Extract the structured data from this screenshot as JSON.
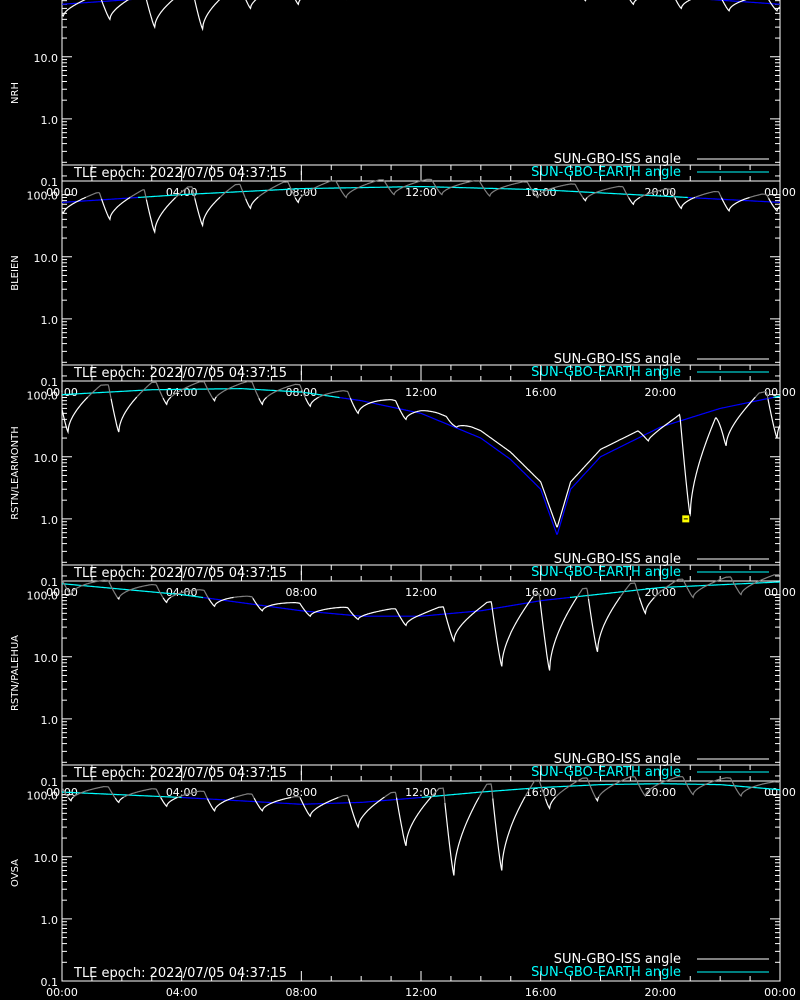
{
  "figure": {
    "x_ticks": [
      "00:00",
      "04:00",
      "08:00",
      "12:00",
      "16:00",
      "20:00",
      "00:00"
    ],
    "y_ticks": [
      "100.0",
      "10.0",
      "1.0",
      "0.1"
    ],
    "epoch_label": "TLE epoch: 2022/07/05 04:37:15",
    "legend": {
      "iss_label": "SUN-GBO-ISS angle",
      "earth_label": "SUN-GBO-EARTH angle",
      "iss_color": "#ffffff",
      "earth_color": "#00ffff"
    },
    "colors": {
      "background": "#000000",
      "axes": "#ffffff",
      "earth_below": "#0000ff",
      "earth_above": "#00ffff",
      "iss_below": "#ffffff",
      "iss_above": "#808080",
      "marker": "#ffff00"
    }
  },
  "chart_data": [
    {
      "type": "line",
      "ylabel": "NRH",
      "y_scale": "log",
      "xlim": [
        0,
        24
      ],
      "ylim": [
        0.1,
        300
      ],
      "earth": {
        "x": [
          0,
          4,
          8,
          12,
          16,
          20,
          24
        ],
        "y": [
          70,
          95,
          120,
          135,
          120,
          95,
          70
        ]
      },
      "iss_dips": [
        {
          "t": 0.05,
          "min": 45
        },
        {
          "t": 1.6,
          "min": 40
        },
        {
          "t": 3.1,
          "min": 30
        },
        {
          "t": 4.7,
          "min": 28
        },
        {
          "t": 6.3,
          "min": 60
        },
        {
          "t": 7.9,
          "min": 70
        },
        {
          "t": 9.5,
          "min": 85
        },
        {
          "t": 11.1,
          "min": 95
        },
        {
          "t": 12.7,
          "min": 100
        },
        {
          "t": 14.3,
          "min": 95
        },
        {
          "t": 15.9,
          "min": 90
        },
        {
          "t": 17.5,
          "min": 80
        },
        {
          "t": 19.1,
          "min": 70
        },
        {
          "t": 20.7,
          "min": 60
        },
        {
          "t": 22.3,
          "min": 55
        },
        {
          "t": 23.9,
          "min": 55
        }
      ]
    },
    {
      "type": "line",
      "ylabel": "BLEIEN",
      "y_scale": "log",
      "xlim": [
        0,
        24
      ],
      "ylim": [
        0.1,
        300
      ],
      "earth": {
        "x": [
          0,
          4,
          8,
          12,
          16,
          20,
          24
        ],
        "y": [
          75,
          100,
          125,
          135,
          120,
          95,
          75
        ]
      },
      "iss_dips": [
        {
          "t": 0.05,
          "min": 50
        },
        {
          "t": 1.6,
          "min": 40
        },
        {
          "t": 3.1,
          "min": 25
        },
        {
          "t": 4.7,
          "min": 32
        },
        {
          "t": 6.3,
          "min": 60
        },
        {
          "t": 7.9,
          "min": 75
        },
        {
          "t": 9.5,
          "min": 90
        },
        {
          "t": 11.1,
          "min": 100
        },
        {
          "t": 12.7,
          "min": 100
        },
        {
          "t": 14.3,
          "min": 95
        },
        {
          "t": 15.9,
          "min": 90
        },
        {
          "t": 17.5,
          "min": 80
        },
        {
          "t": 19.1,
          "min": 70
        },
        {
          "t": 20.7,
          "min": 60
        },
        {
          "t": 22.3,
          "min": 55
        },
        {
          "t": 23.9,
          "min": 55
        }
      ]
    },
    {
      "type": "line",
      "ylabel": "RSTN/LEARMONTH",
      "y_scale": "log",
      "xlim": [
        0,
        24
      ],
      "ylim": [
        0.1,
        300
      ],
      "earth": {
        "x": [
          0,
          3,
          6,
          8,
          10,
          12,
          14,
          15,
          16,
          16.55,
          17,
          18,
          20,
          22,
          24
        ],
        "y": [
          100,
          120,
          125,
          110,
          80,
          50,
          20,
          9,
          3,
          0.55,
          3,
          10,
          30,
          60,
          95
        ]
      },
      "iss_dips": [
        {
          "t": 0.2,
          "min": 25
        },
        {
          "t": 1.9,
          "min": 25
        },
        {
          "t": 3.5,
          "min": 70
        },
        {
          "t": 5.1,
          "min": 80
        },
        {
          "t": 6.7,
          "min": 70
        },
        {
          "t": 8.3,
          "min": 65
        },
        {
          "t": 9.9,
          "min": 50
        },
        {
          "t": 11.5,
          "min": 40
        },
        {
          "t": 13.2,
          "min": 30
        },
        {
          "t": 14.8,
          "min": 30
        },
        {
          "t": 16.4,
          "min": 25
        },
        {
          "t": 18.0,
          "min": 25
        },
        {
          "t": 19.6,
          "min": 18
        },
        {
          "t": 21.0,
          "min": 1.1
        },
        {
          "t": 22.2,
          "min": 15
        },
        {
          "t": 23.9,
          "min": 20
        }
      ],
      "marker": {
        "t": 20.85,
        "y": 1.0
      }
    },
    {
      "type": "line",
      "ylabel": "RSTN/PALEHUA",
      "y_scale": "log",
      "xlim": [
        0,
        24
      ],
      "ylim": [
        0.1,
        300
      ],
      "earth": {
        "x": [
          0,
          4,
          8,
          10,
          12,
          14,
          16,
          20,
          24
        ],
        "y": [
          150,
          100,
          55,
          45,
          45,
          55,
          80,
          130,
          160
        ]
      },
      "iss_dips": [
        {
          "t": 0.3,
          "min": 100
        },
        {
          "t": 1.9,
          "min": 85
        },
        {
          "t": 3.5,
          "min": 75
        },
        {
          "t": 5.1,
          "min": 65
        },
        {
          "t": 6.7,
          "min": 55
        },
        {
          "t": 8.3,
          "min": 45
        },
        {
          "t": 9.9,
          "min": 40
        },
        {
          "t": 11.5,
          "min": 32
        },
        {
          "t": 13.1,
          "min": 18
        },
        {
          "t": 14.7,
          "min": 7
        },
        {
          "t": 16.3,
          "min": 6
        },
        {
          "t": 17.9,
          "min": 12
        },
        {
          "t": 19.5,
          "min": 50
        },
        {
          "t": 21.1,
          "min": 90
        },
        {
          "t": 22.7,
          "min": 100
        }
      ]
    },
    {
      "type": "line",
      "ylabel": "OVSA",
      "y_scale": "log",
      "xlim": [
        0,
        24
      ],
      "ylim": [
        0.1,
        300
      ],
      "earth": {
        "x": [
          0,
          4,
          8,
          10,
          12,
          14,
          16,
          18,
          20,
          22,
          24
        ],
        "y": [
          110,
          90,
          70,
          75,
          90,
          110,
          130,
          145,
          150,
          145,
          120
        ]
      },
      "iss_dips": [
        {
          "t": 0.3,
          "min": 80
        },
        {
          "t": 1.9,
          "min": 75
        },
        {
          "t": 3.5,
          "min": 65
        },
        {
          "t": 5.1,
          "min": 55
        },
        {
          "t": 6.7,
          "min": 55
        },
        {
          "t": 8.3,
          "min": 45
        },
        {
          "t": 9.9,
          "min": 30
        },
        {
          "t": 11.5,
          "min": 15
        },
        {
          "t": 13.1,
          "min": 5
        },
        {
          "t": 14.7,
          "min": 6
        },
        {
          "t": 16.3,
          "min": 60
        },
        {
          "t": 17.9,
          "min": 80
        },
        {
          "t": 19.5,
          "min": 95
        },
        {
          "t": 21.1,
          "min": 100
        },
        {
          "t": 22.7,
          "min": 95
        }
      ]
    }
  ]
}
